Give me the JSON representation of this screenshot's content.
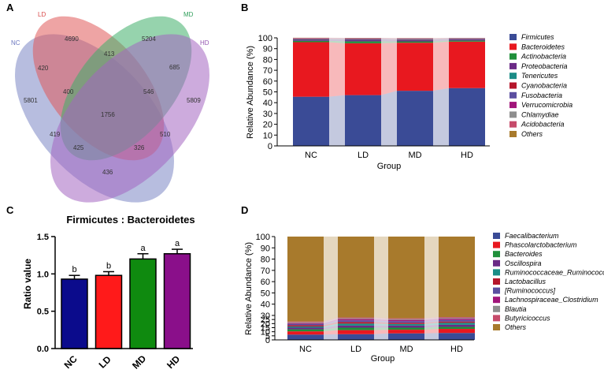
{
  "panels": {
    "a": "A",
    "b": "B",
    "c": "C",
    "d": "D"
  },
  "chart_data": [
    {
      "type": "venn",
      "panel": "A",
      "sets": [
        {
          "name": "NC",
          "color": "#7b86c4"
        },
        {
          "name": "LD",
          "color": "#e05a5a"
        },
        {
          "name": "MD",
          "color": "#3fae6a"
        },
        {
          "name": "HD",
          "color": "#a466c1"
        }
      ],
      "regions": [
        {
          "id": "NC_only",
          "value": "5801"
        },
        {
          "id": "LD_only",
          "value": "4690"
        },
        {
          "id": "MD_only",
          "value": "5204"
        },
        {
          "id": "HD_only",
          "value": "5809"
        },
        {
          "id": "NC_LD",
          "value": "420"
        },
        {
          "id": "LD_MD",
          "value": "413"
        },
        {
          "id": "MD_HD",
          "value": "685"
        },
        {
          "id": "NC_LD_MD",
          "value": "400"
        },
        {
          "id": "LD_MD_HD",
          "value": "546"
        },
        {
          "id": "all",
          "value": "1756"
        },
        {
          "id": "NC_MD",
          "value": "419"
        },
        {
          "id": "LD_HD",
          "value": "510"
        },
        {
          "id": "NC_MD_HD",
          "value": "425"
        },
        {
          "id": "NC_LD_HD",
          "value": "326"
        },
        {
          "id": "NC_HD",
          "value": "436"
        }
      ]
    },
    {
      "type": "bar",
      "stacked": true,
      "panel": "B",
      "categories": [
        "NC",
        "LD",
        "MD",
        "HD"
      ],
      "xlabel": "Group",
      "ylabel": "Relative Abundance (%)",
      "ylim": [
        0,
        100
      ],
      "yticks": [
        "0",
        "10",
        "20",
        "30",
        "40",
        "50",
        "60",
        "70",
        "80",
        "90",
        "100"
      ],
      "series": [
        {
          "name": "Firmicutes",
          "color": "#3a4b96",
          "values": [
            45.5,
            47.0,
            51.0,
            53.5
          ]
        },
        {
          "name": "Bacteroidetes",
          "color": "#e8181f",
          "values": [
            50.5,
            48.0,
            44.5,
            43.0
          ]
        },
        {
          "name": "Actinobacteria",
          "color": "#1f8f3a",
          "values": [
            1.2,
            1.8,
            1.2,
            1.0
          ]
        },
        {
          "name": "Proteobacteria",
          "color": "#6b2a86",
          "values": [
            1.0,
            1.5,
            1.2,
            1.0
          ]
        },
        {
          "name": "Tenericutes",
          "color": "#1b8c86",
          "values": [
            0.4,
            0.3,
            0.4,
            0.3
          ]
        },
        {
          "name": "Cyanobacteria",
          "color": "#b5162b",
          "values": [
            0.3,
            0.3,
            0.3,
            0.3
          ]
        },
        {
          "name": "Fusobacteria",
          "color": "#5b4fa0",
          "values": [
            0.3,
            0.3,
            0.3,
            0.3
          ]
        },
        {
          "name": "Verrucomicrobia",
          "color": "#a1157a",
          "values": [
            0.3,
            0.3,
            0.3,
            0.2
          ]
        },
        {
          "name": "Chlamydiae",
          "color": "#8e8e8e",
          "values": [
            0.2,
            0.2,
            0.2,
            0.2
          ]
        },
        {
          "name": "Acidobacteria",
          "color": "#c64b6b",
          "values": [
            0.2,
            0.1,
            0.2,
            0.1
          ]
        },
        {
          "name": "Others",
          "color": "#a87a2c",
          "values": [
            0.2,
            0.2,
            0.2,
            0.1
          ]
        }
      ]
    },
    {
      "type": "bar",
      "panel": "C",
      "title": "Firmicutes : Bacteroidetes",
      "categories": [
        "NC",
        "LD",
        "MD",
        "HD"
      ],
      "values": [
        0.93,
        0.98,
        1.2,
        1.27
      ],
      "errors": [
        0.05,
        0.05,
        0.07,
        0.06
      ],
      "significance": [
        "b",
        "b",
        "a",
        "a"
      ],
      "colors": [
        "#0b0b8c",
        "#ff1a1a",
        "#0f8a0f",
        "#8a0f8a"
      ],
      "ylabel": "Ratio value",
      "ylim": [
        0,
        1.5
      ],
      "yticks": [
        "0.0",
        "0.5",
        "1.0",
        "1.5"
      ]
    },
    {
      "type": "bar",
      "stacked": true,
      "panel": "D",
      "categories": [
        "NC",
        "LD",
        "MD",
        "HD"
      ],
      "xlabel": "Group",
      "ylabel": "Relative Abundance (%)",
      "ylim": [
        0,
        100
      ],
      "yticks": [
        "0",
        "5",
        "10",
        "15",
        "20",
        "25",
        "30",
        "40",
        "50",
        "60",
        "70",
        "80",
        "90",
        "100"
      ],
      "series": [
        {
          "name": "Faecalibacterium",
          "color": "#3a4b96",
          "values": [
            6.5,
            7.0,
            8.0,
            8.5
          ]
        },
        {
          "name": "Phascolarctobacterium",
          "color": "#e8181f",
          "values": [
            4.0,
            5.0,
            4.5,
            5.0
          ]
        },
        {
          "name": "Bacteroides",
          "color": "#1f8f3a",
          "values": [
            2.5,
            3.0,
            2.5,
            2.5
          ]
        },
        {
          "name": "Oscillospira",
          "color": "#6b2a86",
          "values": [
            2.0,
            2.5,
            2.5,
            2.5
          ]
        },
        {
          "name": "Ruminococcaceae_Ruminococcus",
          "color": "#1b8c86",
          "values": [
            1.5,
            2.5,
            2.0,
            2.5
          ]
        },
        {
          "name": "Lactobacillus",
          "color": "#b5162b",
          "values": [
            1.5,
            2.0,
            1.5,
            1.5
          ]
        },
        {
          "name": "[Ruminococcus]",
          "color": "#5b4fa0",
          "values": [
            1.5,
            2.0,
            2.0,
            2.0
          ]
        },
        {
          "name": "Lachnospiraceae_Clostridium",
          "color": "#a1157a",
          "values": [
            1.0,
            1.5,
            1.5,
            1.5
          ]
        },
        {
          "name": "Blautia",
          "color": "#8e8e8e",
          "values": [
            1.0,
            1.0,
            1.0,
            1.0
          ]
        },
        {
          "name": "Butyricicoccus",
          "color": "#c64b6b",
          "values": [
            1.0,
            1.0,
            1.0,
            1.0
          ]
        },
        {
          "name": "Others",
          "color": "#a87a2c",
          "values": [
            77.5,
            72.5,
            73.5,
            72.0
          ]
        }
      ]
    }
  ]
}
